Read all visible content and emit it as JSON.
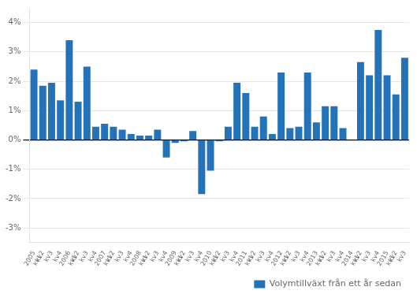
{
  "chart_data": {
    "type": "bar",
    "categories": [
      "2005\nkv1",
      "kv2",
      "kv3",
      "kv4",
      "2006\nkv1",
      "kv2",
      "kv3",
      "kv4",
      "2007\nkv1",
      "kv2",
      "kv3",
      "kv4",
      "2008\nkv1",
      "kv2",
      "kv3",
      "kv4",
      "2009\nkv1",
      "kv2",
      "kv3",
      "kv4",
      "2010\nkv1",
      "kv2",
      "kv3",
      "kv4",
      "2011\nkv1",
      "kv2",
      "kv3",
      "kv4",
      "2012\nkv1",
      "kv2",
      "kv3",
      "kv4",
      "2013\nkv1",
      "kv2",
      "kv3",
      "kv4",
      "2014\nkv1",
      "kv2",
      "kv3",
      "kv4",
      "2015\nkv1",
      "kv2",
      "kv3"
    ],
    "series": [
      {
        "name": "Volymtillväxt från ett år sedan",
        "color": "#2472b8",
        "values": [
          2.4,
          1.85,
          1.95,
          1.35,
          3.4,
          1.3,
          2.5,
          0.45,
          0.55,
          0.45,
          0.35,
          0.2,
          0.15,
          0.15,
          0.35,
          -0.6,
          -0.1,
          -0.05,
          0.3,
          -1.85,
          -1.05,
          -0.05,
          0.45,
          1.95,
          1.6,
          0.45,
          0.8,
          0.2,
          2.3,
          0.4,
          0.45,
          2.3,
          0.6,
          1.15,
          1.15,
          0.4,
          0.0,
          2.65,
          2.2,
          3.75,
          2.2,
          1.55,
          2.8
        ]
      }
    ],
    "ylim": [
      -3.5,
      4.5
    ],
    "yticks": [
      {
        "value": -3,
        "label": "-3%"
      },
      {
        "value": -2,
        "label": "-2%"
      },
      {
        "value": -1,
        "label": "-1%"
      },
      {
        "value": 0,
        "label": "0%"
      },
      {
        "value": 1,
        "label": "1%"
      },
      {
        "value": 2,
        "label": "2%"
      },
      {
        "value": 3,
        "label": "3%"
      },
      {
        "value": 4,
        "label": "4%"
      }
    ],
    "grid": true,
    "legend": "lower right"
  }
}
